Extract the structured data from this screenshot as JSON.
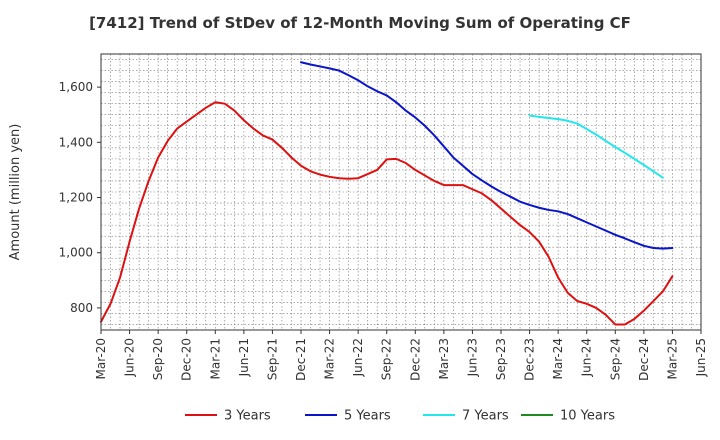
{
  "chart_data": {
    "type": "line",
    "title": "[7412]  Trend of StDev of 12-Month Moving Sum of Operating CF",
    "xlabel": "",
    "ylabel": "Amount (million yen)",
    "ylim": [
      720,
      1720
    ],
    "yticks": [
      800,
      1000,
      1200,
      1400,
      1600
    ],
    "ytick_labels": [
      "800",
      "1,000",
      "1,200",
      "1,400",
      "1,600"
    ],
    "xticks": [
      "Mar-20",
      "Jun-20",
      "Sep-20",
      "Dec-20",
      "Mar-21",
      "Jun-21",
      "Sep-21",
      "Dec-21",
      "Mar-22",
      "Jun-22",
      "Sep-22",
      "Dec-22",
      "Mar-23",
      "Jun-23",
      "Sep-23",
      "Dec-23",
      "Mar-24",
      "Jun-24",
      "Sep-24",
      "Dec-24",
      "Mar-25",
      "Jun-25"
    ],
    "grid": true,
    "legend_position": "bottom",
    "series": [
      {
        "name": "3 Years",
        "color": "#dd1111",
        "points": [
          [
            0,
            750
          ],
          [
            1,
            815
          ],
          [
            2,
            910
          ],
          [
            3,
            1040
          ],
          [
            4,
            1160
          ],
          [
            5,
            1260
          ],
          [
            6,
            1345
          ],
          [
            7,
            1405
          ],
          [
            8,
            1450
          ],
          [
            9,
            1475
          ],
          [
            10,
            1500
          ],
          [
            11,
            1525
          ],
          [
            12,
            1545
          ],
          [
            13,
            1540
          ],
          [
            14,
            1515
          ],
          [
            15,
            1480
          ],
          [
            16,
            1450
          ],
          [
            17,
            1425
          ],
          [
            18,
            1410
          ],
          [
            19,
            1380
          ],
          [
            20,
            1345
          ],
          [
            21,
            1315
          ],
          [
            22,
            1295
          ],
          [
            23,
            1283
          ],
          [
            24,
            1275
          ],
          [
            25,
            1270
          ],
          [
            26,
            1268
          ],
          [
            27,
            1270
          ],
          [
            28,
            1285
          ],
          [
            29,
            1300
          ],
          [
            30,
            1338
          ],
          [
            31,
            1340
          ],
          [
            32,
            1325
          ],
          [
            33,
            1300
          ],
          [
            34,
            1280
          ],
          [
            35,
            1260
          ],
          [
            36,
            1245
          ],
          [
            37,
            1245
          ],
          [
            38,
            1245
          ],
          [
            39,
            1230
          ],
          [
            40,
            1215
          ],
          [
            41,
            1190
          ],
          [
            42,
            1160
          ],
          [
            43,
            1130
          ],
          [
            44,
            1100
          ],
          [
            45,
            1075
          ],
          [
            46,
            1040
          ],
          [
            47,
            985
          ],
          [
            48,
            910
          ],
          [
            49,
            855
          ],
          [
            50,
            825
          ],
          [
            51,
            815
          ],
          [
            52,
            800
          ],
          [
            53,
            775
          ],
          [
            54,
            740
          ],
          [
            55,
            740
          ],
          [
            56,
            760
          ],
          [
            57,
            790
          ],
          [
            58,
            825
          ],
          [
            59,
            860
          ],
          [
            60,
            915
          ]
        ]
      },
      {
        "name": "5 Years",
        "color": "#0a14c8",
        "points": [
          [
            21,
            1690
          ],
          [
            22,
            1682
          ],
          [
            23,
            1675
          ],
          [
            24,
            1668
          ],
          [
            25,
            1660
          ],
          [
            26,
            1643
          ],
          [
            27,
            1625
          ],
          [
            28,
            1603
          ],
          [
            29,
            1585
          ],
          [
            30,
            1570
          ],
          [
            31,
            1545
          ],
          [
            32,
            1515
          ],
          [
            33,
            1490
          ],
          [
            34,
            1460
          ],
          [
            35,
            1425
          ],
          [
            36,
            1385
          ],
          [
            37,
            1345
          ],
          [
            38,
            1315
          ],
          [
            39,
            1285
          ],
          [
            40,
            1262
          ],
          [
            41,
            1240
          ],
          [
            42,
            1220
          ],
          [
            43,
            1203
          ],
          [
            44,
            1185
          ],
          [
            45,
            1173
          ],
          [
            46,
            1163
          ],
          [
            47,
            1155
          ],
          [
            48,
            1150
          ],
          [
            49,
            1140
          ],
          [
            50,
            1125
          ],
          [
            51,
            1110
          ],
          [
            52,
            1095
          ],
          [
            53,
            1080
          ],
          [
            54,
            1065
          ],
          [
            55,
            1052
          ],
          [
            56,
            1038
          ],
          [
            57,
            1025
          ],
          [
            58,
            1017
          ],
          [
            59,
            1015
          ],
          [
            60,
            1017
          ]
        ]
      },
      {
        "name": "7 Years",
        "color": "#22e6ee",
        "points": [
          [
            45,
            1497
          ],
          [
            46,
            1492
          ],
          [
            47,
            1488
          ],
          [
            48,
            1484
          ],
          [
            49,
            1478
          ],
          [
            50,
            1468
          ],
          [
            51,
            1448
          ],
          [
            52,
            1428
          ],
          [
            53,
            1405
          ],
          [
            54,
            1383
          ],
          [
            55,
            1362
          ],
          [
            56,
            1340
          ],
          [
            57,
            1318
          ],
          [
            58,
            1295
          ],
          [
            59,
            1272
          ]
        ]
      },
      {
        "name": "10 Years",
        "color": "#1f8a1f",
        "points": []
      }
    ]
  }
}
